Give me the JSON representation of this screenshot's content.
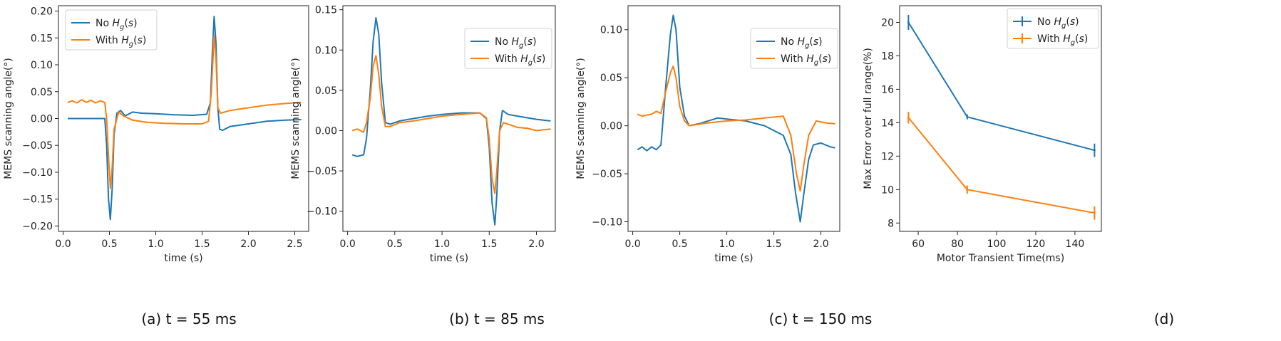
{
  "chart_data": [
    {
      "type": "line",
      "caption": "(a) t = 55 ms",
      "xlabel": "time (s)",
      "ylabel": "MEMS scanning angle(°)",
      "xlim": [
        -0.05,
        2.65
      ],
      "ylim": [
        -0.21,
        0.21
      ],
      "xticks": [
        0.0,
        0.5,
        1.0,
        1.5,
        2.0,
        2.5
      ],
      "xtick_labels": [
        "0.0",
        "0.5",
        "1.0",
        "1.5",
        "2.0",
        "2.5"
      ],
      "yticks": [
        -0.2,
        -0.15,
        -0.1,
        -0.05,
        0.0,
        0.05,
        0.1,
        0.15,
        0.2
      ],
      "ytick_labels": [
        "−0.20",
        "−0.15",
        "−0.10",
        "−0.05",
        "0.00",
        "0.05",
        "0.10",
        "0.15",
        "0.20"
      ],
      "legend_position": "top-left",
      "series": [
        {
          "name": "No Hg(s)",
          "legend_prefix": "No",
          "color": "#1f77b4",
          "points": [
            [
              0.05,
              0.0
            ],
            [
              0.2,
              0.0
            ],
            [
              0.35,
              0.0
            ],
            [
              0.45,
              0.0
            ],
            [
              0.47,
              -0.05
            ],
            [
              0.49,
              -0.15
            ],
            [
              0.51,
              -0.188
            ],
            [
              0.53,
              -0.13
            ],
            [
              0.55,
              -0.03
            ],
            [
              0.58,
              0.01
            ],
            [
              0.62,
              0.015
            ],
            [
              0.67,
              0.005
            ],
            [
              0.75,
              0.012
            ],
            [
              0.85,
              0.01
            ],
            [
              1.0,
              0.009
            ],
            [
              1.2,
              0.007
            ],
            [
              1.4,
              0.006
            ],
            [
              1.55,
              0.008
            ],
            [
              1.59,
              0.03
            ],
            [
              1.61,
              0.12
            ],
            [
              1.63,
              0.19
            ],
            [
              1.65,
              0.14
            ],
            [
              1.67,
              0.02
            ],
            [
              1.69,
              -0.02
            ],
            [
              1.72,
              -0.022
            ],
            [
              1.8,
              -0.015
            ],
            [
              2.0,
              -0.01
            ],
            [
              2.2,
              -0.005
            ],
            [
              2.4,
              -0.003
            ],
            [
              2.57,
              -0.002
            ]
          ]
        },
        {
          "name": "With Hg(s)",
          "legend_prefix": "With",
          "color": "#ff7f0e",
          "points": [
            [
              0.05,
              0.03
            ],
            [
              0.1,
              0.033
            ],
            [
              0.15,
              0.029
            ],
            [
              0.2,
              0.035
            ],
            [
              0.25,
              0.03
            ],
            [
              0.3,
              0.034
            ],
            [
              0.35,
              0.029
            ],
            [
              0.4,
              0.033
            ],
            [
              0.45,
              0.03
            ],
            [
              0.47,
              0.0
            ],
            [
              0.49,
              -0.07
            ],
            [
              0.51,
              -0.13
            ],
            [
              0.53,
              -0.09
            ],
            [
              0.55,
              -0.02
            ],
            [
              0.6,
              0.012
            ],
            [
              0.65,
              0.005
            ],
            [
              0.75,
              -0.003
            ],
            [
              0.9,
              -0.007
            ],
            [
              1.1,
              -0.009
            ],
            [
              1.3,
              -0.01
            ],
            [
              1.5,
              -0.01
            ],
            [
              1.57,
              -0.005
            ],
            [
              1.6,
              0.05
            ],
            [
              1.63,
              0.155
            ],
            [
              1.65,
              0.11
            ],
            [
              1.67,
              0.02
            ],
            [
              1.7,
              0.01
            ],
            [
              1.8,
              0.015
            ],
            [
              2.0,
              0.02
            ],
            [
              2.2,
              0.025
            ],
            [
              2.4,
              0.028
            ],
            [
              2.57,
              0.03
            ]
          ]
        }
      ]
    },
    {
      "type": "line",
      "caption": "(b) t = 85 ms",
      "xlabel": "time (s)",
      "ylabel": "MEMS scanning angle(°)",
      "xlim": [
        -0.05,
        2.2
      ],
      "ylim": [
        -0.125,
        0.155
      ],
      "xticks": [
        0.0,
        0.5,
        1.0,
        1.5,
        2.0
      ],
      "xtick_labels": [
        "0.0",
        "0.5",
        "1.0",
        "1.5",
        "2.0"
      ],
      "yticks": [
        -0.1,
        -0.05,
        0.0,
        0.05,
        0.1,
        0.15
      ],
      "ytick_labels": [
        "−0.10",
        "−0.05",
        "0.00",
        "0.05",
        "0.10",
        "0.15"
      ],
      "legend_position": "top-right",
      "series": [
        {
          "name": "No Hg(s)",
          "legend_prefix": "No",
          "color": "#1f77b4",
          "points": [
            [
              0.05,
              -0.03
            ],
            [
              0.1,
              -0.032
            ],
            [
              0.17,
              -0.03
            ],
            [
              0.2,
              -0.01
            ],
            [
              0.24,
              0.05
            ],
            [
              0.27,
              0.11
            ],
            [
              0.3,
              0.14
            ],
            [
              0.33,
              0.12
            ],
            [
              0.36,
              0.06
            ],
            [
              0.4,
              0.01
            ],
            [
              0.45,
              0.008
            ],
            [
              0.55,
              0.012
            ],
            [
              0.7,
              0.015
            ],
            [
              0.85,
              0.018
            ],
            [
              1.0,
              0.02
            ],
            [
              1.2,
              0.022
            ],
            [
              1.4,
              0.022
            ],
            [
              1.47,
              0.015
            ],
            [
              1.5,
              -0.02
            ],
            [
              1.53,
              -0.09
            ],
            [
              1.56,
              -0.117
            ],
            [
              1.58,
              -0.08
            ],
            [
              1.61,
              0.0
            ],
            [
              1.64,
              0.025
            ],
            [
              1.7,
              0.02
            ],
            [
              1.8,
              0.018
            ],
            [
              1.9,
              0.016
            ],
            [
              2.0,
              0.014
            ],
            [
              2.15,
              0.012
            ]
          ]
        },
        {
          "name": "With Hg(s)",
          "legend_prefix": "With",
          "color": "#ff7f0e",
          "points": [
            [
              0.05,
              0.0
            ],
            [
              0.1,
              0.002
            ],
            [
              0.17,
              -0.002
            ],
            [
              0.2,
              0.01
            ],
            [
              0.24,
              0.04
            ],
            [
              0.27,
              0.08
            ],
            [
              0.3,
              0.093
            ],
            [
              0.33,
              0.07
            ],
            [
              0.36,
              0.03
            ],
            [
              0.4,
              0.005
            ],
            [
              0.45,
              0.005
            ],
            [
              0.55,
              0.01
            ],
            [
              0.7,
              0.012
            ],
            [
              0.85,
              0.015
            ],
            [
              1.0,
              0.018
            ],
            [
              1.2,
              0.02
            ],
            [
              1.4,
              0.022
            ],
            [
              1.47,
              0.016
            ],
            [
              1.5,
              -0.01
            ],
            [
              1.53,
              -0.06
            ],
            [
              1.56,
              -0.078
            ],
            [
              1.58,
              -0.05
            ],
            [
              1.61,
              0.0
            ],
            [
              1.65,
              0.01
            ],
            [
              1.7,
              0.008
            ],
            [
              1.8,
              0.004
            ],
            [
              1.9,
              0.003
            ],
            [
              2.0,
              0.0
            ],
            [
              2.15,
              0.002
            ]
          ]
        }
      ]
    },
    {
      "type": "line",
      "caption": "(c) t = 150 ms",
      "xlabel": "time (s)",
      "ylabel": "MEMS scanning angle(°)",
      "xlim": [
        -0.05,
        2.2
      ],
      "ylim": [
        -0.11,
        0.125
      ],
      "xticks": [
        0.0,
        0.5,
        1.0,
        1.5,
        2.0
      ],
      "xtick_labels": [
        "0.0",
        "0.5",
        "1.0",
        "1.5",
        "2.0"
      ],
      "yticks": [
        -0.1,
        -0.05,
        0.0,
        0.05,
        0.1
      ],
      "ytick_labels": [
        "−0.10",
        "−0.05",
        "0.00",
        "0.05",
        "0.10"
      ],
      "legend_position": "top-right",
      "series": [
        {
          "name": "No Hg(s)",
          "legend_prefix": "No",
          "color": "#1f77b4",
          "points": [
            [
              0.05,
              -0.025
            ],
            [
              0.1,
              -0.022
            ],
            [
              0.15,
              -0.026
            ],
            [
              0.2,
              -0.022
            ],
            [
              0.25,
              -0.025
            ],
            [
              0.3,
              -0.02
            ],
            [
              0.35,
              0.04
            ],
            [
              0.4,
              0.095
            ],
            [
              0.43,
              0.115
            ],
            [
              0.46,
              0.1
            ],
            [
              0.5,
              0.04
            ],
            [
              0.55,
              0.01
            ],
            [
              0.6,
              0.0
            ],
            [
              0.7,
              0.002
            ],
            [
              0.8,
              0.005
            ],
            [
              0.9,
              0.008
            ],
            [
              1.0,
              0.007
            ],
            [
              1.2,
              0.005
            ],
            [
              1.4,
              0.0
            ],
            [
              1.6,
              -0.01
            ],
            [
              1.68,
              -0.03
            ],
            [
              1.73,
              -0.07
            ],
            [
              1.78,
              -0.1
            ],
            [
              1.82,
              -0.07
            ],
            [
              1.87,
              -0.035
            ],
            [
              1.92,
              -0.02
            ],
            [
              2.0,
              -0.018
            ],
            [
              2.1,
              -0.022
            ],
            [
              2.15,
              -0.023
            ]
          ]
        },
        {
          "name": "With Hg(s)",
          "legend_prefix": "With",
          "color": "#ff7f0e",
          "points": [
            [
              0.05,
              0.012
            ],
            [
              0.1,
              0.01
            ],
            [
              0.15,
              0.011
            ],
            [
              0.2,
              0.012
            ],
            [
              0.25,
              0.015
            ],
            [
              0.3,
              0.013
            ],
            [
              0.35,
              0.035
            ],
            [
              0.4,
              0.055
            ],
            [
              0.43,
              0.062
            ],
            [
              0.46,
              0.05
            ],
            [
              0.5,
              0.02
            ],
            [
              0.55,
              0.005
            ],
            [
              0.6,
              0.0
            ],
            [
              0.8,
              0.003
            ],
            [
              1.0,
              0.005
            ],
            [
              1.2,
              0.006
            ],
            [
              1.4,
              0.008
            ],
            [
              1.6,
              0.01
            ],
            [
              1.68,
              -0.01
            ],
            [
              1.74,
              -0.05
            ],
            [
              1.78,
              -0.068
            ],
            [
              1.82,
              -0.04
            ],
            [
              1.87,
              -0.01
            ],
            [
              1.95,
              0.005
            ],
            [
              2.05,
              0.003
            ],
            [
              2.15,
              0.002
            ]
          ]
        }
      ]
    },
    {
      "type": "line",
      "caption": "(d)",
      "xlabel": "Motor Transient Time(ms)",
      "ylabel": "Max Error over full range(%)",
      "xlim": [
        50.5,
        153.5
      ],
      "ylim": [
        7.5,
        21.0
      ],
      "xticks": [
        60,
        80,
        100,
        120,
        140
      ],
      "xtick_labels": [
        "60",
        "80",
        "100",
        "120",
        "140"
      ],
      "yticks": [
        8,
        10,
        12,
        14,
        16,
        18,
        20
      ],
      "ytick_labels": [
        "8",
        "10",
        "12",
        "14",
        "16",
        "18",
        "20"
      ],
      "legend_position": "top-right",
      "error_bars": true,
      "series": [
        {
          "name": "No Hg(s)",
          "legend_prefix": "No",
          "color": "#1f77b4",
          "x": [
            55,
            85,
            150
          ],
          "values": [
            20.0,
            14.35,
            12.35
          ],
          "errors": [
            0.45,
            0.15,
            0.4
          ]
        },
        {
          "name": "With Hg(s)",
          "legend_prefix": "With",
          "color": "#ff7f0e",
          "x": [
            55,
            85,
            150
          ],
          "values": [
            14.3,
            10.0,
            8.6
          ],
          "errors": [
            0.35,
            0.25,
            0.4
          ]
        }
      ]
    }
  ]
}
